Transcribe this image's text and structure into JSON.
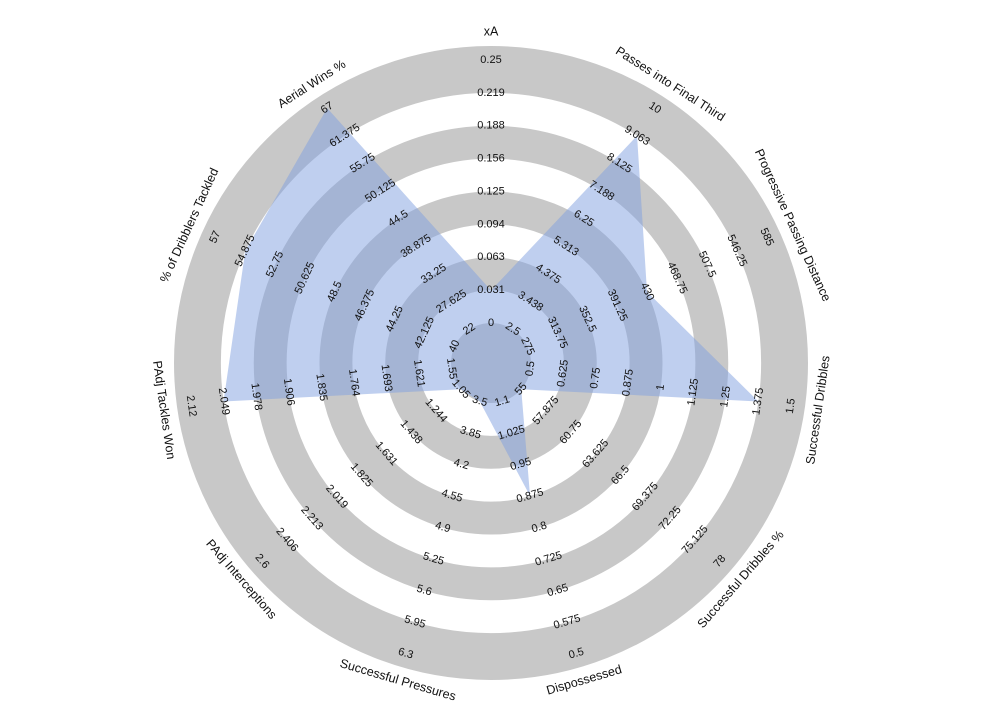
{
  "chart_data": {
    "type": "radar",
    "title": "",
    "axes": [
      {
        "label": "xA",
        "ticks": [
          "0",
          "0.031",
          "0.063",
          "0.094",
          "0.125",
          "0.156",
          "0.188",
          "0.219",
          "0.25"
        ],
        "value": 0.031,
        "range": [
          0,
          0.25
        ]
      },
      {
        "label": "Passes into Final Third",
        "ticks": [
          "2.5",
          "3.438",
          "4.375",
          "5.313",
          "6.25",
          "7.188",
          "8.125",
          "9.063",
          "10"
        ],
        "value": 9.063,
        "range": [
          2.5,
          10
        ]
      },
      {
        "label": "Progressive Passing Distance",
        "ticks": [
          "275",
          "313.75",
          "352.5",
          "391.25",
          "430",
          "468.75",
          "507.5",
          "546.25",
          "585"
        ],
        "value": 430,
        "range": [
          275,
          585
        ]
      },
      {
        "label": "Successful Dribbles",
        "ticks": [
          "0.5",
          "0.625",
          "0.75",
          "0.875",
          "1",
          "1.125",
          "1.25",
          "1.375",
          "1.5"
        ],
        "value": 1.375,
        "range": [
          0.5,
          1.5
        ]
      },
      {
        "label": "Successful Dribbles %",
        "ticks": [
          "55",
          "57.875",
          "60.75",
          "63.625",
          "66.5",
          "69.375",
          "72.25",
          "75.125",
          "78"
        ],
        "value": 55,
        "range": [
          55,
          78
        ]
      },
      {
        "label": "Dispossessed",
        "ticks": [
          "1.1",
          "1.025",
          "0.95",
          "0.875",
          "0.8",
          "0.725",
          "0.65",
          "0.575",
          "0.5"
        ],
        "value": 0.875,
        "range": [
          1.1,
          0.5
        ]
      },
      {
        "label": "Successful Pressures",
        "ticks": [
          "3.5",
          "3.85",
          "4.2",
          "4.55",
          "4.9",
          "5.25",
          "5.6",
          "5.95",
          "6.3"
        ],
        "value": 3.5,
        "range": [
          3.5,
          6.3
        ]
      },
      {
        "label": "PAdj Interceptions",
        "ticks": [
          "1.05",
          "1.244",
          "1.438",
          "1.631",
          "1.825",
          "2.019",
          "2.213",
          "2.406",
          "2.6"
        ],
        "value": 1.05,
        "range": [
          1.05,
          2.6
        ]
      },
      {
        "label": "PAdj Tackles Won",
        "ticks": [
          "1.55",
          "1.621",
          "1.693",
          "1.764",
          "1.835",
          "1.906",
          "1.978",
          "2.049",
          "2.12"
        ],
        "value": 2.049,
        "range": [
          1.55,
          2.12
        ]
      },
      {
        "label": "% of Dribblers Tackled",
        "ticks": [
          "40",
          "44.25",
          "48.5",
          "52.75",
          "57"
        ],
        "value": 54.875,
        "range": [
          40,
          57
        ]
      },
      {
        "label": "Aerial Wins %",
        "ticks": [
          "22",
          "27.625",
          "33.25",
          "38.875",
          "44.5",
          "50.125",
          "55.75",
          "61.375",
          "67"
        ],
        "value": 67,
        "range": [
          22,
          67
        ]
      }
    ],
    "extra_labels": [
      {
        "axis": "% of Dribblers Tackled",
        "ticks": [
          "42.125",
          "46.375",
          "50.625",
          "54.875"
        ]
      }
    ],
    "colors": {
      "fill": "#7f9fe0",
      "ring": "#c8c8c8",
      "center": "#c8c8c8"
    }
  }
}
